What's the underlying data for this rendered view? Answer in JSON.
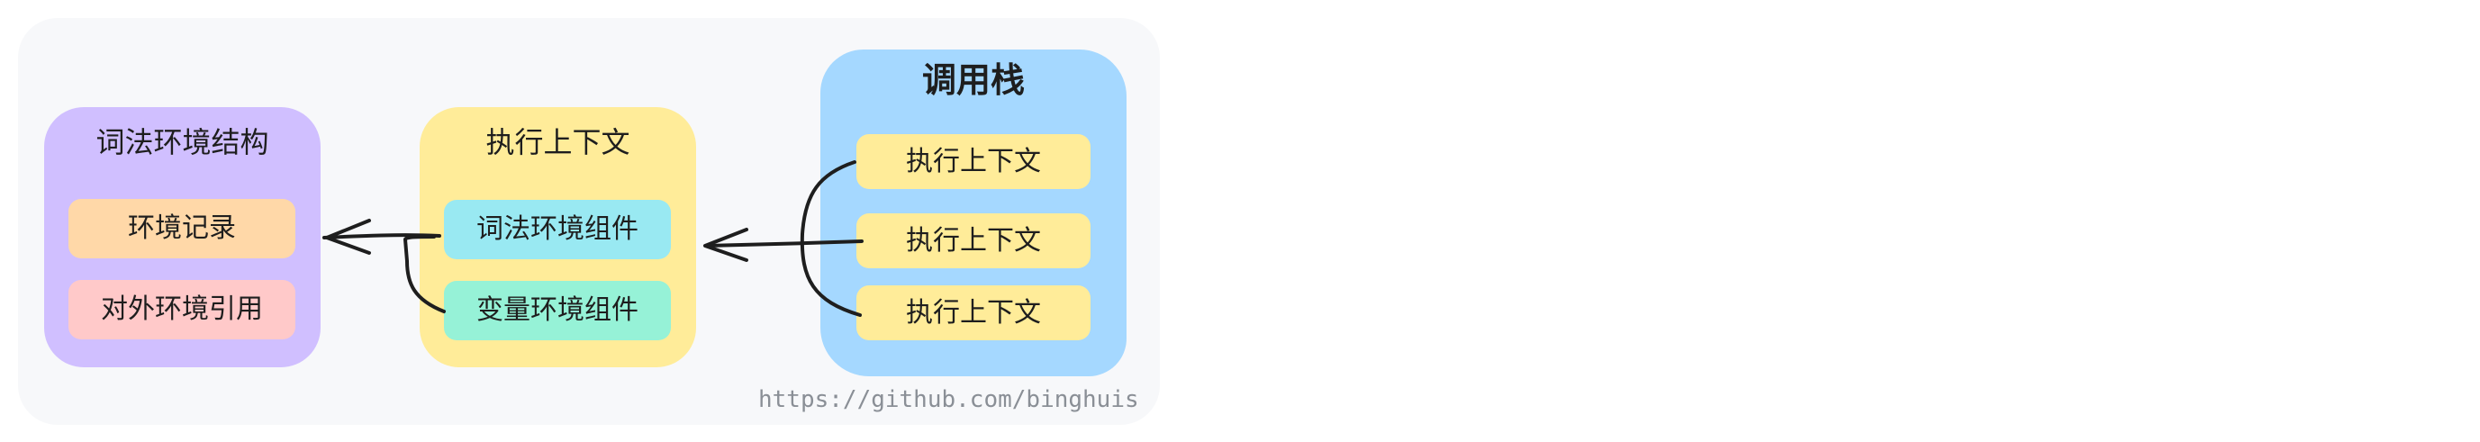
{
  "diagram": {
    "lexical_environment": {
      "title": "词法环境结构",
      "items": [
        "环境记录",
        "对外环境引用"
      ]
    },
    "execution_context": {
      "title": "执行上下文",
      "items": [
        "词法环境组件",
        "变量环境组件"
      ]
    },
    "call_stack": {
      "title": "调用栈",
      "items": [
        "执行上下文",
        "执行上下文",
        "执行上下文"
      ]
    },
    "credit": "https://github.com/binghuis"
  },
  "colors": {
    "canvas": "#f7f8fa",
    "lexical_group": "#d0bfff",
    "environment_record": "#ffd8a8",
    "outer_reference": "#ffc9c9",
    "context_group": "#ffec99",
    "lexical_component": "#99e9f2",
    "variable_component": "#96f2d7",
    "call_stack_group": "#a5d8ff",
    "stack_item": "#ffec99",
    "stroke": "#1e1e1e"
  }
}
